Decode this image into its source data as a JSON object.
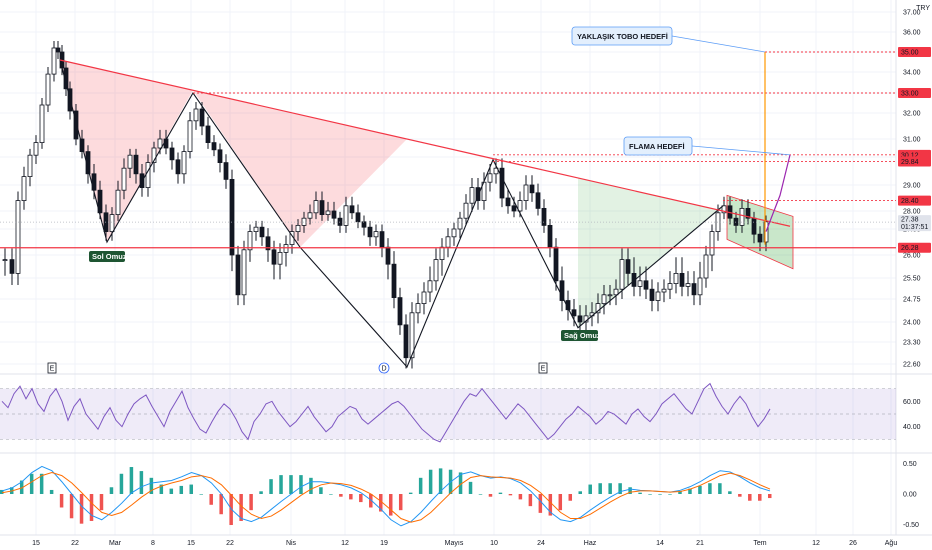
{
  "chart_data": [
    {
      "type": "candlestick",
      "currency": "TRY",
      "price_ticks": [
        "37.00",
        "36.00",
        "35.00",
        "34.00",
        "33.00",
        "32.00",
        "31.00",
        "30.00",
        "29.00",
        "28.00",
        "27.00",
        "26.00",
        "25.50",
        "24.75",
        "24.00",
        "23.30",
        "22.60"
      ],
      "date_ticks": [
        "15",
        "22",
        "Mar",
        "8",
        "15",
        "22",
        "Nis",
        "12",
        "19",
        "Mayıs",
        "10",
        "24",
        "Haz",
        "14",
        "21",
        "Tem",
        "12",
        "26",
        "Ağu"
      ],
      "price_labels": [
        {
          "value": 35.0,
          "text": "35.00",
          "color": "#f23645"
        },
        {
          "value": 33.0,
          "text": "33.00",
          "color": "#f23645"
        },
        {
          "value": 30.12,
          "text": "30.12",
          "color": "#f23645"
        },
        {
          "value": 29.84,
          "text": "29.84",
          "color": "#f23645"
        },
        {
          "value": 28.4,
          "text": "28.40",
          "color": "#f23645"
        },
        {
          "value": 27.38,
          "text": "27.38",
          "sub": "01:37:51",
          "color": "#e0e3eb"
        },
        {
          "value": 26.28,
          "text": "26.28",
          "color": "#f23645"
        }
      ],
      "annotations": [
        {
          "text": "YAKLAŞIK TOBO HEDEFİ",
          "type": "callout",
          "target_price": 35.0
        },
        {
          "text": "FLAMA HEDEFİ",
          "type": "callout",
          "target_price": 30.12
        },
        {
          "text": "Sol Omuz",
          "type": "label"
        },
        {
          "text": "Sağ Omuz",
          "type": "label"
        }
      ],
      "neckline": 26.28,
      "event_markers": [
        "E",
        "D",
        "E"
      ],
      "series": [
        {
          "name": "head-shoulders-left",
          "points": [
            [
              60,
              34.6
            ],
            [
              107,
              26.5
            ],
            [
              193,
              33.0
            ],
            [
              300,
              26.3
            ],
            [
              407,
              22.5
            ],
            [
              493,
              29.9
            ],
            [
              578,
              23.8
            ],
            [
              723,
              28.2
            ]
          ]
        },
        {
          "name": "close",
          "points": [
            [
              5,
              25.9
            ],
            [
              12,
              25.6
            ],
            [
              18,
              28.4
            ],
            [
              24,
              29.3
            ],
            [
              30,
              30.1
            ],
            [
              36,
              30.8
            ],
            [
              42,
              32.4
            ],
            [
              48,
              33.9
            ],
            [
              54,
              35.2
            ],
            [
              58,
              35.0
            ],
            [
              62,
              34.2
            ],
            [
              66,
              33.2
            ],
            [
              70,
              32.1
            ],
            [
              76,
              31.0
            ],
            [
              82,
              30.3
            ],
            [
              88,
              29.4
            ],
            [
              94,
              28.8
            ],
            [
              100,
              27.9
            ],
            [
              106,
              26.9
            ],
            [
              112,
              27.8
            ],
            [
              118,
              28.8
            ],
            [
              124,
              29.6
            ],
            [
              130,
              30.1
            ],
            [
              136,
              29.4
            ],
            [
              142,
              28.9
            ],
            [
              148,
              29.8
            ],
            [
              154,
              30.5
            ],
            [
              160,
              31.0
            ],
            [
              166,
              30.5
            ],
            [
              172,
              29.9
            ],
            [
              178,
              29.4
            ],
            [
              184,
              30.3
            ],
            [
              190,
              31.7
            ],
            [
              196,
              32.2
            ],
            [
              202,
              31.5
            ],
            [
              208,
              30.8
            ],
            [
              214,
              30.4
            ],
            [
              220,
              29.8
            ],
            [
              226,
              29.2
            ],
            [
              232,
              26.0
            ],
            [
              238,
              24.9
            ],
            [
              244,
              26.2
            ],
            [
              250,
              26.9
            ],
            [
              256,
              27.1
            ],
            [
              262,
              26.7
            ],
            [
              268,
              26.2
            ],
            [
              274,
              25.8
            ],
            [
              280,
              26.1
            ],
            [
              286,
              26.4
            ],
            [
              292,
              26.9
            ],
            [
              298,
              27.2
            ],
            [
              304,
              27.6
            ],
            [
              310,
              27.9
            ],
            [
              316,
              28.4
            ],
            [
              322,
              27.8
            ],
            [
              328,
              28.0
            ],
            [
              334,
              27.6
            ],
            [
              340,
              27.2
            ],
            [
              346,
              28.2
            ],
            [
              352,
              27.9
            ],
            [
              358,
              27.4
            ],
            [
              364,
              27.1
            ],
            [
              370,
              26.7
            ],
            [
              376,
              26.9
            ],
            [
              382,
              26.3
            ],
            [
              388,
              25.8
            ],
            [
              394,
              24.8
            ],
            [
              400,
              23.9
            ],
            [
              406,
              22.8
            ],
            [
              412,
              24.3
            ],
            [
              418,
              24.6
            ],
            [
              424,
              25.0
            ],
            [
              430,
              25.4
            ],
            [
              436,
              25.9
            ],
            [
              442,
              26.3
            ],
            [
              448,
              26.7
            ],
            [
              454,
              27.0
            ],
            [
              460,
              27.6
            ],
            [
              466,
              28.3
            ],
            [
              472,
              28.9
            ],
            [
              478,
              28.4
            ],
            [
              484,
              29.1
            ],
            [
              490,
              29.4
            ],
            [
              496,
              29.6
            ],
            [
              502,
              28.5
            ],
            [
              508,
              28.2
            ],
            [
              514,
              28.0
            ],
            [
              520,
              28.4
            ],
            [
              526,
              29.0
            ],
            [
              532,
              28.7
            ],
            [
              538,
              28.1
            ],
            [
              544,
              27.2
            ],
            [
              550,
              26.3
            ],
            [
              556,
              25.4
            ],
            [
              562,
              24.7
            ],
            [
              568,
              24.4
            ],
            [
              574,
              24.2
            ],
            [
              580,
              24.0
            ],
            [
              586,
              24.2
            ],
            [
              592,
              24.3
            ],
            [
              598,
              24.6
            ],
            [
              604,
              24.9
            ],
            [
              610,
              24.9
            ],
            [
              616,
              25.1
            ],
            [
              622,
              25.9
            ],
            [
              628,
              25.6
            ],
            [
              634,
              25.2
            ],
            [
              640,
              25.4
            ],
            [
              646,
              25.1
            ],
            [
              652,
              24.7
            ],
            [
              658,
              25.0
            ],
            [
              664,
              25.1
            ],
            [
              670,
              25.3
            ],
            [
              676,
              25.6
            ],
            [
              682,
              25.2
            ],
            [
              688,
              25.3
            ],
            [
              694,
              24.9
            ],
            [
              700,
              25.5
            ],
            [
              706,
              26.0
            ],
            [
              712,
              26.9
            ],
            [
              718,
              27.9
            ],
            [
              724,
              28.2
            ],
            [
              730,
              27.6
            ],
            [
              736,
              27.2
            ],
            [
              742,
              28.1
            ],
            [
              748,
              27.6
            ],
            [
              754,
              26.8
            ],
            [
              760,
              26.5
            ],
            [
              766,
              27.4
            ]
          ]
        }
      ],
      "ylim": [
        22.2,
        37.2
      ]
    },
    {
      "type": "line",
      "name": "RSI",
      "ticks": [
        "60.00",
        "40.00"
      ],
      "band": [
        30,
        70
      ],
      "values": [
        60,
        55,
        66,
        72,
        62,
        70,
        58,
        52,
        64,
        70,
        60,
        45,
        56,
        62,
        50,
        44,
        38,
        48,
        55,
        45,
        40,
        50,
        58,
        62,
        65,
        56,
        48,
        40,
        52,
        60,
        68,
        55,
        46,
        38,
        35,
        44,
        52,
        58,
        54,
        46,
        36,
        30,
        44,
        50,
        58,
        60,
        52,
        46,
        40,
        44,
        50,
        56,
        48,
        42,
        36,
        40,
        48,
        52,
        56,
        54,
        46,
        42,
        46,
        50,
        54,
        58,
        60,
        56,
        50,
        44,
        38,
        34,
        30,
        28,
        36,
        44,
        52,
        60,
        66,
        64,
        70,
        64,
        58,
        52,
        46,
        52,
        58,
        54,
        48,
        42,
        36,
        30,
        34,
        40,
        46,
        50,
        56,
        52,
        48,
        42,
        46,
        52,
        50,
        46,
        42,
        50,
        54,
        48,
        44,
        50,
        58,
        62,
        66,
        60,
        54,
        50,
        60,
        70,
        74,
        64,
        56,
        50,
        58,
        64,
        58,
        48,
        40,
        46,
        54
      ],
      "ylim": [
        20,
        80
      ]
    },
    {
      "type": "line",
      "name": "MACD",
      "ticks": [
        "0.50",
        "0.00",
        "-0.50"
      ],
      "macd": [
        0.05,
        0.1,
        0.2,
        0.35,
        0.45,
        0.38,
        0.2,
        0.0,
        -0.2,
        -0.35,
        -0.42,
        -0.3,
        -0.15,
        0.02,
        0.12,
        0.18,
        0.2,
        0.22,
        0.28,
        0.35,
        0.3,
        0.18,
        0.0,
        -0.25,
        -0.4,
        -0.45,
        -0.38,
        -0.25,
        -0.12,
        0.0,
        0.12,
        0.2,
        0.2,
        0.18,
        0.15,
        0.1,
        0.02,
        -0.1,
        -0.25,
        -0.42,
        -0.52,
        -0.45,
        -0.3,
        -0.12,
        0.05,
        0.2,
        0.32,
        0.36,
        0.3,
        0.26,
        0.28,
        0.25,
        0.18,
        0.05,
        -0.12,
        -0.3,
        -0.42,
        -0.45,
        -0.38,
        -0.26,
        -0.15,
        -0.05,
        0.04,
        0.08,
        0.06,
        0.05,
        0.04,
        0.03,
        0.06,
        0.12,
        0.2,
        0.3,
        0.38,
        0.36,
        0.28,
        0.18,
        0.1,
        0.05
      ],
      "signal": [
        0.02,
        0.05,
        0.1,
        0.2,
        0.3,
        0.35,
        0.3,
        0.18,
        0.02,
        -0.15,
        -0.3,
        -0.35,
        -0.3,
        -0.18,
        -0.05,
        0.06,
        0.13,
        0.18,
        0.22,
        0.28,
        0.3,
        0.26,
        0.15,
        -0.02,
        -0.2,
        -0.33,
        -0.4,
        -0.36,
        -0.26,
        -0.14,
        -0.02,
        0.08,
        0.15,
        0.18,
        0.17,
        0.14,
        0.08,
        0.0,
        -0.12,
        -0.26,
        -0.4,
        -0.46,
        -0.42,
        -0.3,
        -0.14,
        0.02,
        0.16,
        0.27,
        0.3,
        0.28,
        0.27,
        0.26,
        0.22,
        0.14,
        0.02,
        -0.14,
        -0.3,
        -0.4,
        -0.4,
        -0.33,
        -0.23,
        -0.13,
        -0.04,
        0.03,
        0.05,
        0.05,
        0.04,
        0.03,
        0.04,
        0.08,
        0.14,
        0.22,
        0.3,
        0.34,
        0.3,
        0.23,
        0.15,
        0.08
      ],
      "ylim": [
        -0.62,
        0.62
      ]
    }
  ]
}
